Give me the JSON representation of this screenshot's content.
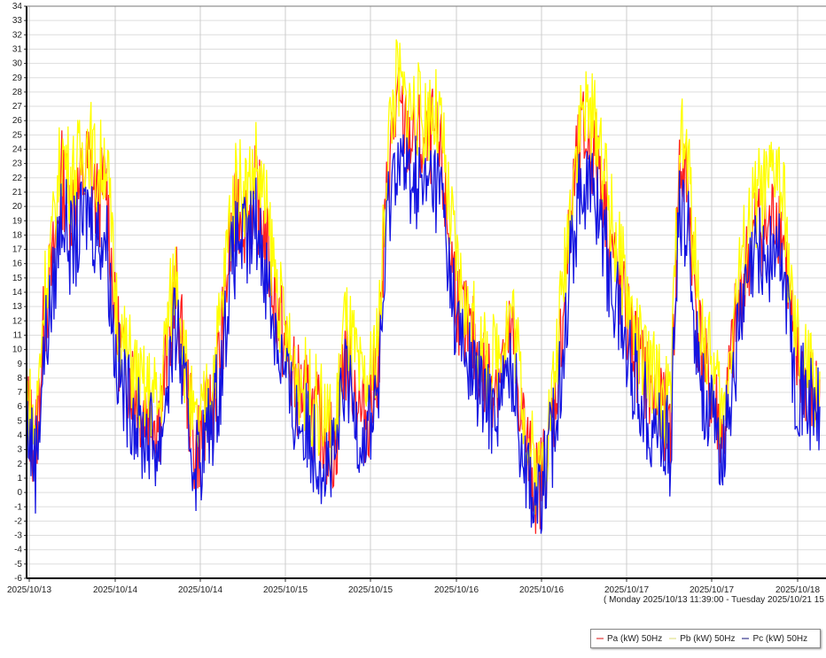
{
  "chart_data": {
    "type": "line",
    "title": "",
    "ylim": [
      -6,
      34
    ],
    "yticks": [
      -6,
      -5,
      -4,
      -3,
      -2,
      -1,
      0,
      1,
      2,
      3,
      4,
      5,
      6,
      7,
      8,
      9,
      10,
      11,
      12,
      13,
      14,
      15,
      16,
      17,
      18,
      19,
      20,
      21,
      22,
      23,
      24,
      25,
      26,
      27,
      28,
      29,
      30,
      31,
      32,
      33,
      34
    ],
    "xtick_labels": [
      "2025/10/13",
      "2025/10/14",
      "2025/10/14",
      "2025/10/15",
      "2025/10/15",
      "2025/10/16",
      "2025/10/16",
      "2025/10/17",
      "2025/10/17",
      "2025/10/18"
    ],
    "range_label": "( Monday 2025/10/13 11:39:00  -  Tuesday 2025/10/21 15",
    "x_unit": "hours since start",
    "x_step_hours": 2.17,
    "series": [
      {
        "name": "Pa (kW) 50Hz",
        "color": "#ff2020",
        "values": [
          6,
          3,
          12,
          16,
          22,
          20,
          21,
          23,
          20,
          22,
          12,
          9,
          8,
          6,
          6,
          5,
          10,
          14,
          8,
          3,
          4,
          6,
          10,
          17,
          20,
          19,
          21,
          18,
          14,
          11,
          8,
          7,
          6,
          5,
          4,
          3,
          10,
          8,
          5,
          6,
          10,
          23,
          27,
          25,
          25,
          24,
          25,
          23,
          17,
          13,
          11,
          10,
          8,
          8,
          9,
          11,
          6,
          2,
          0,
          3,
          7,
          14,
          21,
          25,
          24,
          23,
          18,
          15,
          12,
          10,
          8,
          7,
          6,
          5,
          23,
          21,
          12,
          8,
          6,
          4,
          10,
          14,
          17,
          19,
          18,
          20,
          17,
          9,
          8,
          7,
          6
        ]
      },
      {
        "name": "Pb (kW) 50Hz",
        "color": "#ffff00",
        "values": [
          7,
          4,
          14,
          18,
          24,
          22,
          23,
          25,
          22,
          24,
          14,
          10,
          9,
          7,
          7,
          6,
          12,
          16,
          9,
          4,
          5,
          8,
          12,
          19,
          22,
          21,
          23,
          20,
          16,
          12,
          9,
          8,
          7,
          6,
          5,
          4,
          12,
          10,
          7,
          8,
          12,
          25,
          29,
          27,
          27,
          26,
          27,
          25,
          19,
          15,
          12,
          11,
          9,
          9,
          11,
          13,
          8,
          3,
          1,
          4,
          9,
          16,
          23,
          27,
          26,
          25,
          20,
          17,
          14,
          11,
          9,
          8,
          7,
          6,
          25,
          23,
          14,
          10,
          8,
          5,
          12,
          16,
          19,
          21,
          21,
          23,
          19,
          11,
          9,
          8,
          7
        ]
      },
      {
        "name": "Pc (kW) 50Hz",
        "color": "#1414e0",
        "values": [
          5,
          2,
          10,
          14,
          20,
          17,
          18,
          20,
          18,
          18,
          10,
          7,
          6,
          4,
          4,
          3,
          8,
          12,
          6,
          2,
          3,
          5,
          8,
          15,
          18,
          17,
          19,
          16,
          12,
          9,
          6,
          5,
          4,
          3,
          2,
          2,
          8,
          6,
          4,
          5,
          8,
          20,
          24,
          22,
          22,
          21,
          22,
          21,
          15,
          11,
          9,
          8,
          6,
          6,
          7,
          9,
          4,
          1,
          -1,
          2,
          5,
          12,
          18,
          22,
          21,
          20,
          15,
          13,
          10,
          8,
          6,
          5,
          4,
          3,
          20,
          18,
          10,
          6,
          4,
          3,
          8,
          12,
          15,
          17,
          16,
          17,
          15,
          8,
          7,
          6,
          5
        ]
      }
    ],
    "legend_position": "bottom-right"
  }
}
